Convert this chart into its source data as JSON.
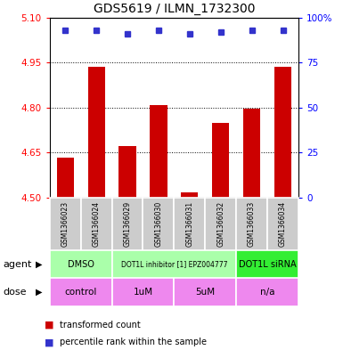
{
  "title": "GDS5619 / ILMN_1732300",
  "samples": [
    "GSM1366023",
    "GSM1366024",
    "GSM1366029",
    "GSM1366030",
    "GSM1366031",
    "GSM1366032",
    "GSM1366033",
    "GSM1366034"
  ],
  "bar_values": [
    4.634,
    4.935,
    4.672,
    4.807,
    4.517,
    4.748,
    4.797,
    4.935
  ],
  "percentile_values": [
    93,
    93,
    91,
    93,
    91,
    92,
    93,
    93
  ],
  "ylim": [
    4.5,
    5.1
  ],
  "yticks_left": [
    4.5,
    4.65,
    4.8,
    4.95,
    5.1
  ],
  "yticks_right": [
    0,
    25,
    50,
    75,
    100
  ],
  "yticks_right_labels": [
    "0",
    "25",
    "50",
    "75",
    "100%"
  ],
  "bar_color": "#cc0000",
  "dot_color": "#3333cc",
  "bar_width": 0.55,
  "baseline": 4.5,
  "agent_segments": [
    {
      "label": "DMSO",
      "start": 0,
      "end": 2,
      "color": "#aaffaa"
    },
    {
      "label": "DOT1L inhibitor [1] EPZ004777",
      "start": 2,
      "end": 6,
      "color": "#aaffaa"
    },
    {
      "label": "DOT1L siRNA",
      "start": 6,
      "end": 8,
      "color": "#33ee33"
    }
  ],
  "dose_segments": [
    {
      "label": "control",
      "start": 0,
      "end": 2,
      "color": "#ee88ee"
    },
    {
      "label": "1uM",
      "start": 2,
      "end": 4,
      "color": "#ee88ee"
    },
    {
      "label": "5uM",
      "start": 4,
      "end": 6,
      "color": "#ee88ee"
    },
    {
      "label": "n/a",
      "start": 6,
      "end": 8,
      "color": "#ee88ee"
    }
  ],
  "sample_bg_color": "#cccccc",
  "agent_label": "agent",
  "dose_label": "dose",
  "legend_bar_label": "transformed count",
  "legend_dot_label": "percentile rank within the sample",
  "grid_yticks": [
    4.65,
    4.8,
    4.95
  ]
}
